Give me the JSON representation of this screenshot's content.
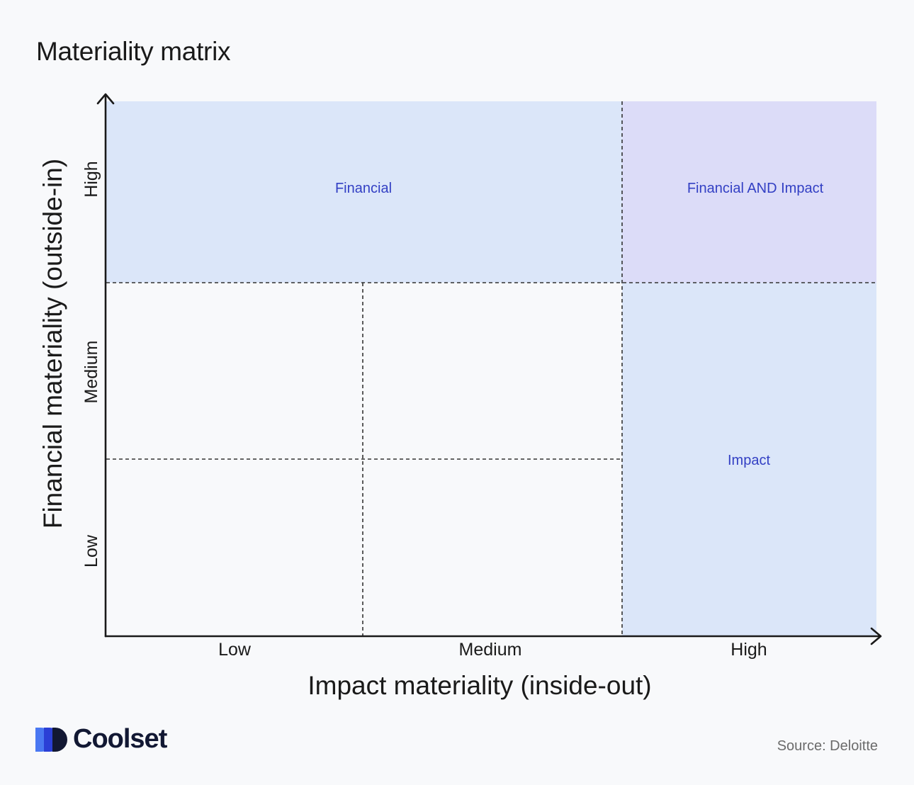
{
  "title": "Materiality matrix",
  "axes": {
    "x_label": "Impact materiality (inside-out)",
    "y_label": "Financial materiality (outside-in)",
    "x_ticks": [
      "Low",
      "Medium",
      "High"
    ],
    "y_ticks": [
      "Low",
      "Medium",
      "High"
    ]
  },
  "regions": {
    "financial": "Financial",
    "both": "Financial AND Impact",
    "impact": "Impact"
  },
  "colors": {
    "financial_region": "#dbe6f9",
    "both_region": "#dcdcf8",
    "impact_region": "#dbe6f9",
    "region_text": "#3340c4",
    "axis": "#1a1a1a",
    "grid": "#333333"
  },
  "source": "Source: Deloitte",
  "brand": {
    "name": "Coolset",
    "mark_icon": "coolset-logo-icon"
  }
}
